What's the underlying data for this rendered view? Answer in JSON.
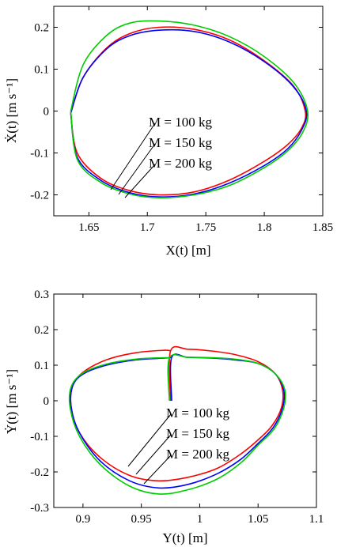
{
  "chart_data": [
    {
      "type": "line",
      "xlabel": "X(t) [m]",
      "ylabel": "Ẋ(t) [m s⁻¹]",
      "xlim": [
        1.62,
        1.85
      ],
      "ylim": [
        -0.25,
        0.25
      ],
      "xticks": [
        1.65,
        1.7,
        1.75,
        1.8,
        1.85
      ],
      "xtick_labels": [
        "1.65",
        "1.7",
        "1.75",
        "1.8",
        "1.85"
      ],
      "yticks": [
        0.2,
        0.1,
        0,
        -0.1,
        -0.2
      ],
      "ytick_labels": [
        "0.2",
        "0.1",
        "0",
        "-0.1",
        "-0.2"
      ],
      "annotations": [
        "M = 100 kg",
        "M = 150 kg",
        "M = 200 kg"
      ],
      "series": [
        {
          "name": "M = 100 kg",
          "color": "#ff0000",
          "x": [
            1.6345,
            1.645,
            1.665,
            1.685,
            1.71,
            1.74,
            1.77,
            1.8,
            1.825,
            1.835,
            1.832,
            1.82,
            1.8,
            1.77,
            1.74,
            1.71,
            1.685,
            1.66,
            1.64,
            1.6345
          ],
          "y": [
            -0.005,
            0.08,
            0.15,
            0.185,
            0.2,
            0.195,
            0.17,
            0.12,
            0.06,
            0.0,
            -0.04,
            -0.08,
            -0.12,
            -0.165,
            -0.193,
            -0.2,
            -0.19,
            -0.16,
            -0.1,
            -0.005
          ]
        },
        {
          "name": "M = 150 kg",
          "color": "#0000ff",
          "x": [
            1.6345,
            1.645,
            1.665,
            1.685,
            1.71,
            1.74,
            1.77,
            1.8,
            1.825,
            1.836,
            1.832,
            1.82,
            1.8,
            1.77,
            1.74,
            1.71,
            1.685,
            1.66,
            1.64,
            1.6345
          ],
          "y": [
            -0.005,
            0.08,
            0.148,
            0.18,
            0.193,
            0.19,
            0.165,
            0.118,
            0.058,
            0.0,
            -0.045,
            -0.09,
            -0.13,
            -0.172,
            -0.198,
            -0.205,
            -0.195,
            -0.165,
            -0.11,
            -0.005
          ]
        },
        {
          "name": "M = 200 kg",
          "color": "#00cc00",
          "x": [
            1.6345,
            1.645,
            1.665,
            1.685,
            1.71,
            1.74,
            1.77,
            1.8,
            1.826,
            1.837,
            1.833,
            1.82,
            1.8,
            1.77,
            1.74,
            1.71,
            1.685,
            1.66,
            1.64,
            1.6345
          ],
          "y": [
            0.0,
            0.11,
            0.18,
            0.21,
            0.215,
            0.205,
            0.178,
            0.13,
            0.065,
            0.0,
            -0.05,
            -0.095,
            -0.135,
            -0.178,
            -0.2,
            -0.207,
            -0.198,
            -0.17,
            -0.115,
            0.0
          ]
        }
      ]
    },
    {
      "type": "line",
      "xlabel": "Y(t) [m]",
      "ylabel": "Ẏ(t) [m s⁻¹]",
      "xlim": [
        0.875,
        1.1
      ],
      "ylim": [
        -0.3,
        0.3
      ],
      "xticks": [
        0.9,
        0.95,
        1,
        1.05,
        1.1
      ],
      "xtick_labels": [
        "0.9",
        "0.95",
        "1",
        "1.05",
        "1.1"
      ],
      "yticks": [
        0.3,
        0.2,
        0.1,
        0,
        -0.1,
        -0.2,
        -0.3
      ],
      "ytick_labels": [
        "0.3",
        "0.2",
        "0.1",
        "0",
        "-0.1",
        "-0.2",
        "-0.3"
      ],
      "annotations": [
        "M = 100 kg",
        "M = 150 kg",
        "M = 200 kg"
      ],
      "series": [
        {
          "name": "M = 100 kg",
          "color": "#ff0000",
          "x": [
            0.975,
            0.975,
            0.99,
            1.01,
            1.03,
            1.05,
            1.065,
            1.071,
            1.07,
            1.062,
            1.05,
            1.035,
            1.015,
            0.99,
            0.965,
            0.94,
            0.915,
            0.897,
            0.89,
            0.891,
            0.9,
            0.92,
            0.945,
            0.97,
            0.975
          ],
          "y": [
            0.0,
            0.14,
            0.145,
            0.14,
            0.13,
            0.11,
            0.075,
            0.03,
            -0.02,
            -0.07,
            -0.11,
            -0.15,
            -0.19,
            -0.215,
            -0.225,
            -0.21,
            -0.16,
            -0.09,
            -0.02,
            0.04,
            0.08,
            0.115,
            0.135,
            0.142,
            0.14
          ]
        },
        {
          "name": "M = 150 kg",
          "color": "#0000ff",
          "x": [
            0.976,
            0.976,
            0.99,
            1.01,
            1.03,
            1.05,
            1.065,
            1.072,
            1.071,
            1.063,
            1.05,
            1.035,
            1.015,
            0.99,
            0.965,
            0.94,
            0.915,
            0.897,
            0.89,
            0.891,
            0.9,
            0.92,
            0.945,
            0.97,
            0.976
          ],
          "y": [
            0.0,
            0.122,
            0.122,
            0.12,
            0.115,
            0.105,
            0.075,
            0.03,
            -0.02,
            -0.075,
            -0.12,
            -0.165,
            -0.205,
            -0.235,
            -0.245,
            -0.225,
            -0.17,
            -0.09,
            -0.02,
            0.04,
            0.075,
            0.1,
            0.115,
            0.12,
            0.122
          ]
        },
        {
          "name": "M = 200 kg",
          "color": "#00cc00",
          "x": [
            0.974,
            0.974,
            0.99,
            1.01,
            1.03,
            1.05,
            1.065,
            1.073,
            1.072,
            1.064,
            1.05,
            1.035,
            1.015,
            0.99,
            0.965,
            0.94,
            0.915,
            0.897,
            0.889,
            0.89,
            0.9,
            0.92,
            0.945,
            0.97,
            0.974
          ],
          "y": [
            0.0,
            0.12,
            0.122,
            0.121,
            0.117,
            0.105,
            0.075,
            0.03,
            -0.02,
            -0.078,
            -0.125,
            -0.175,
            -0.22,
            -0.25,
            -0.262,
            -0.24,
            -0.18,
            -0.1,
            -0.02,
            0.04,
            0.078,
            0.103,
            0.117,
            0.121,
            0.12
          ]
        }
      ]
    }
  ]
}
